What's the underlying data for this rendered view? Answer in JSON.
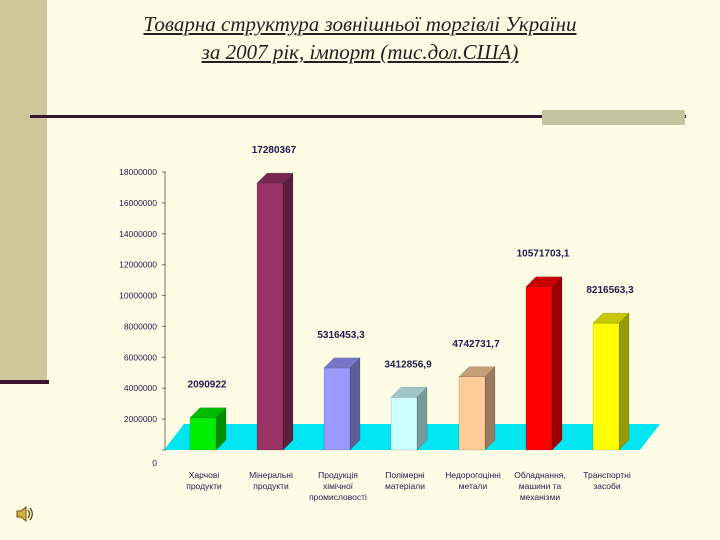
{
  "slide": {
    "title_line1": "Товарна структура зовнішньої торгівлі України",
    "title_line2": "за 2007 рік, імпорт (тис.дол.США)",
    "speaker_icon": "speaker-icon"
  },
  "colors": {
    "background": "#fdfce4",
    "left_band": "#cdc89a",
    "rule": "#3a1530",
    "floor": "#00e5f0"
  },
  "chart_data": {
    "type": "bar",
    "title": "Товарна структура зовнішньої торгівлі України за 2007 рік, імпорт (тис.дол.США)",
    "xlabel": "",
    "ylabel": "",
    "ylim": [
      0,
      18000000
    ],
    "yticks": [
      0,
      2000000,
      4000000,
      6000000,
      8000000,
      10000000,
      12000000,
      14000000,
      16000000,
      18000000
    ],
    "categories": [
      [
        "Харчові",
        "продукти"
      ],
      [
        "Мінеральні",
        "продукти"
      ],
      [
        "Продукція",
        "хімічної",
        "промисловості"
      ],
      [
        "Полімерні",
        "матеріали"
      ],
      [
        "Недорогоцінні",
        "метали"
      ],
      [
        "Обладнання,",
        "машини та",
        "механізми"
      ],
      [
        "Транспортні",
        "засоби"
      ]
    ],
    "values": [
      2090922,
      17280367,
      5316453.3,
      3412856.9,
      4742731.7,
      10571703.1,
      8216563.3
    ],
    "data_labels": [
      "2090922",
      "17280367",
      "5316453,3",
      "3412856,9",
      "4742731,7",
      "10571703,1",
      "8216563,3"
    ],
    "bar_colors": [
      "#00ee00",
      "#993366",
      "#9999ff",
      "#ccffff",
      "#ffcc99",
      "#ff0000",
      "#ffff00"
    ],
    "legend": "none",
    "grid": false
  }
}
